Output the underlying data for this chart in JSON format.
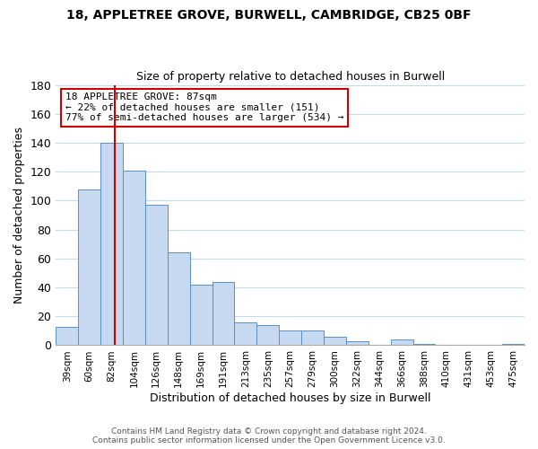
{
  "title_line1": "18, APPLETREE GROVE, BURWELL, CAMBRIDGE, CB25 0BF",
  "title_line2": "Size of property relative to detached houses in Burwell",
  "xlabel": "Distribution of detached houses by size in Burwell",
  "ylabel": "Number of detached properties",
  "bar_labels": [
    "39sqm",
    "60sqm",
    "82sqm",
    "104sqm",
    "126sqm",
    "148sqm",
    "169sqm",
    "191sqm",
    "213sqm",
    "235sqm",
    "257sqm",
    "279sqm",
    "300sqm",
    "322sqm",
    "344sqm",
    "366sqm",
    "388sqm",
    "410sqm",
    "431sqm",
    "453sqm",
    "475sqm"
  ],
  "bar_values": [
    13,
    108,
    140,
    121,
    97,
    64,
    42,
    44,
    16,
    14,
    10,
    10,
    6,
    3,
    0,
    4,
    1,
    0,
    0,
    0,
    1
  ],
  "bar_color": "#c6d9f0",
  "bar_edge_color": "#5b8fc4",
  "vline_x_index": 2,
  "vline_x_offset": 0.15,
  "vline_color": "#cc0000",
  "annotation_text_line1": "18 APPLETREE GROVE: 87sqm",
  "annotation_text_line2": "← 22% of detached houses are smaller (151)",
  "annotation_text_line3": "77% of semi-detached houses are larger (534) →",
  "ylim": [
    0,
    180
  ],
  "yticks": [
    0,
    20,
    40,
    60,
    80,
    100,
    120,
    140,
    160,
    180
  ],
  "footnote_line1": "Contains HM Land Registry data © Crown copyright and database right 2024.",
  "footnote_line2": "Contains public sector information licensed under the Open Government Licence v3.0.",
  "background_color": "#ffffff",
  "grid_color": "#c8d8ec"
}
